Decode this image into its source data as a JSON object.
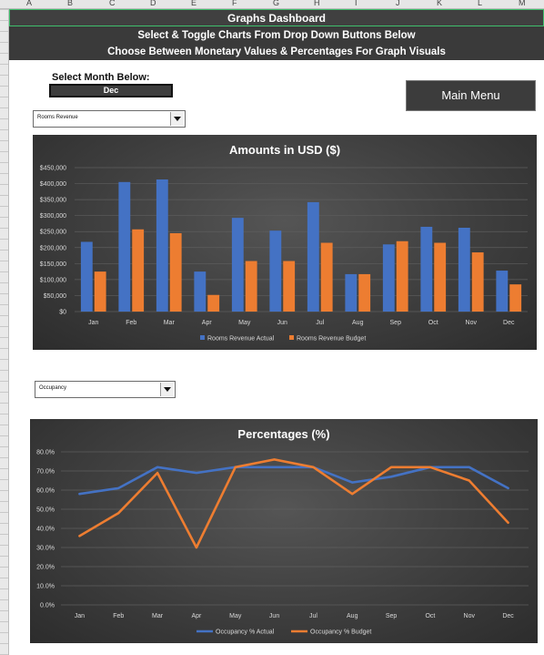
{
  "column_headers": [
    "A",
    "B",
    "C",
    "D",
    "E",
    "F",
    "G",
    "H",
    "I",
    "J",
    "K",
    "L",
    "M"
  ],
  "header": {
    "title": "Graphs Dashboard",
    "subtitle_line1": "Select & Toggle Charts From Drop Down Buttons Below",
    "subtitle_line2": "Choose Between Monetary Values & Percentages For Graph Visuals"
  },
  "month_selector": {
    "label": "Select Month Below:",
    "value": "Dec"
  },
  "main_menu": {
    "label": "Main Menu"
  },
  "dropdown1": {
    "value": "Rooms Revenue"
  },
  "dropdown2": {
    "value": "Occupancy"
  },
  "colors": {
    "actual": "#4472c4",
    "budget": "#ed7d31"
  },
  "chart_data": [
    {
      "type": "bar",
      "title": "Amounts in USD ($)",
      "categories": [
        "Jan",
        "Feb",
        "Mar",
        "Apr",
        "May",
        "Jun",
        "Jul",
        "Aug",
        "Sep",
        "Oct",
        "Nov",
        "Dec"
      ],
      "series": [
        {
          "name": "Rooms Revenue Actual",
          "values": [
            218000,
            405000,
            413000,
            125000,
            293000,
            253000,
            342000,
            117000,
            210000,
            265000,
            262000,
            128000
          ]
        },
        {
          "name": "Rooms Revenue Budget",
          "values": [
            125000,
            257000,
            245000,
            52000,
            158000,
            158000,
            215000,
            117000,
            220000,
            215000,
            185000,
            85000
          ]
        }
      ],
      "y_ticks": [
        "$0",
        "$50,000",
        "$100,000",
        "$150,000",
        "$200,000",
        "$250,000",
        "$300,000",
        "$350,000",
        "$400,000",
        "$450,000"
      ],
      "ylim": [
        0,
        450000
      ],
      "grid": true,
      "legend": "bottom"
    },
    {
      "type": "line",
      "title": "Percentages (%)",
      "categories": [
        "Jan",
        "Feb",
        "Mar",
        "Apr",
        "May",
        "Jun",
        "Jul",
        "Aug",
        "Sep",
        "Oct",
        "Nov",
        "Dec"
      ],
      "series": [
        {
          "name": "Occupancy % Actual",
          "values": [
            58,
            61,
            72,
            69,
            72,
            72,
            72,
            64,
            67,
            72,
            72,
            61
          ]
        },
        {
          "name": "Occupancy % Budget",
          "values": [
            36,
            48,
            69,
            30,
            72,
            76,
            72,
            58,
            72,
            72,
            65,
            43
          ]
        }
      ],
      "y_ticks": [
        "0.0%",
        "10.0%",
        "20.0%",
        "30.0%",
        "40.0%",
        "50.0%",
        "60.0%",
        "70.0%",
        "80.0%"
      ],
      "ylim": [
        0,
        80
      ],
      "grid": true,
      "legend": "bottom"
    }
  ]
}
